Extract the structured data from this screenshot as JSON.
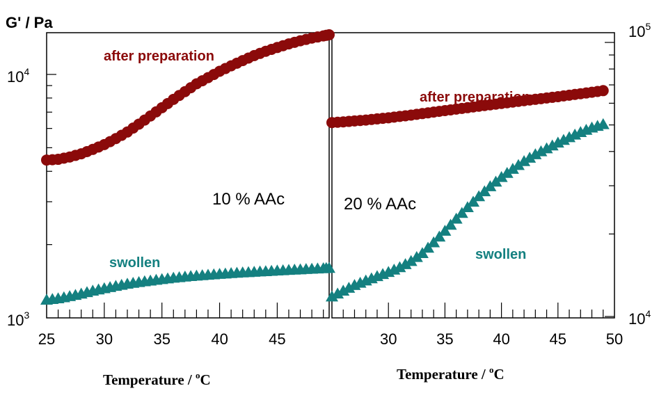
{
  "figure": {
    "y_axis_label": "G'  /  Pa"
  },
  "chart_data": [
    {
      "type": "scatter",
      "panel_label": "10 % AAc",
      "xlabel": "Temperature  / °C",
      "xlabel_parts": {
        "main": "Temperature  / ",
        "sup": "o",
        "unit": "C"
      },
      "ylabel": "G'  /  Pa",
      "y_scale": "log",
      "ylim": [
        1000,
        15000
      ],
      "xlim": [
        25,
        49.5
      ],
      "x_ticks": [
        25,
        30,
        35,
        40,
        45
      ],
      "y_tick_labels": [
        {
          "value": 1000,
          "base": "10",
          "exp": "3"
        },
        {
          "value": 10000,
          "base": "10",
          "exp": "4"
        }
      ],
      "grid": false,
      "series": [
        {
          "name": "after preparation",
          "color": "#8b0a0a",
          "marker": "circle",
          "points": [
            [
              25,
              4450
            ],
            [
              26,
              4480
            ],
            [
              27,
              4580
            ],
            [
              28,
              4720
            ],
            [
              29,
              4920
            ],
            [
              30,
              5150
            ],
            [
              31,
              5450
            ],
            [
              32,
              5800
            ],
            [
              33,
              6250
            ],
            [
              34,
              6750
            ],
            [
              35,
              7300
            ],
            [
              36,
              7900
            ],
            [
              37,
              8500
            ],
            [
              38,
              9150
            ],
            [
              39,
              9700
            ],
            [
              40,
              10300
            ],
            [
              41,
              10850
            ],
            [
              42,
              11400
            ],
            [
              43,
              11950
            ],
            [
              44,
              12450
            ],
            [
              45,
              12900
            ],
            [
              46,
              13350
            ],
            [
              47,
              13750
            ],
            [
              48,
              14100
            ],
            [
              49,
              14400
            ],
            [
              49.5,
              14550
            ]
          ]
        },
        {
          "name": "swollen",
          "color": "#148080",
          "marker": "triangle",
          "points": [
            [
              25,
              1185
            ],
            [
              26,
              1200
            ],
            [
              27,
              1225
            ],
            [
              28,
              1255
            ],
            [
              29,
              1290
            ],
            [
              30,
              1320
            ],
            [
              31,
              1350
            ],
            [
              32,
              1378
            ],
            [
              33,
              1400
            ],
            [
              34,
              1420
            ],
            [
              35,
              1440
            ],
            [
              36,
              1458
            ],
            [
              37,
              1474
            ],
            [
              38,
              1488
            ],
            [
              39,
              1500
            ],
            [
              40,
              1512
            ],
            [
              41,
              1523
            ],
            [
              42,
              1533
            ],
            [
              43,
              1543
            ],
            [
              44,
              1552
            ],
            [
              45,
              1561
            ],
            [
              46,
              1570
            ],
            [
              47,
              1579
            ],
            [
              48,
              1588
            ],
            [
              49,
              1596
            ],
            [
              49.5,
              1600
            ]
          ]
        }
      ]
    },
    {
      "type": "scatter",
      "panel_label": "20 % AAc",
      "xlabel": "Temperature  / °C",
      "xlabel_parts": {
        "main": "Temperature  / ",
        "sup": "o",
        "unit": "C"
      },
      "y_scale": "log",
      "ylim": [
        10000,
        115000
      ],
      "xlim": [
        25,
        50
      ],
      "x_ticks": [
        30,
        35,
        40,
        45,
        50
      ],
      "y_tick_labels": [
        {
          "value": 10000,
          "base": "10",
          "exp": "4"
        },
        {
          "value": 100000,
          "base": "10",
          "exp": "5"
        }
      ],
      "grid": false,
      "series": [
        {
          "name": "after preparation",
          "color": "#8b0a0a",
          "marker": "circle",
          "points": [
            [
              25,
              51000
            ],
            [
              26,
              51300
            ],
            [
              27,
              51700
            ],
            [
              28,
              52100
            ],
            [
              29,
              52600
            ],
            [
              30,
              53100
            ],
            [
              31,
              53700
            ],
            [
              32,
              54300
            ],
            [
              33,
              55000
            ],
            [
              34,
              55700
            ],
            [
              35,
              56400
            ],
            [
              36,
              57100
            ],
            [
              37,
              57800
            ],
            [
              38,
              58500
            ],
            [
              39,
              59200
            ],
            [
              40,
              59900
            ],
            [
              41,
              60600
            ],
            [
              42,
              61300
            ],
            [
              43,
              62000
            ],
            [
              44,
              62700
            ],
            [
              45,
              63400
            ],
            [
              46,
              64200
            ],
            [
              47,
              65000
            ],
            [
              48,
              65800
            ],
            [
              49,
              66700
            ]
          ]
        },
        {
          "name": "swollen",
          "color": "#148080",
          "marker": "triangle",
          "points": [
            [
              25,
              11800
            ],
            [
              26,
              12400
            ],
            [
              27,
              13000
            ],
            [
              28,
              13500
            ],
            [
              29,
              14000
            ],
            [
              30,
              14500
            ],
            [
              31,
              15100
            ],
            [
              32,
              15900
            ],
            [
              33,
              17000
            ],
            [
              34,
              18600
            ],
            [
              35,
              20500
            ],
            [
              36,
              22700
            ],
            [
              37,
              25000
            ],
            [
              38,
              27400
            ],
            [
              39,
              29800
            ],
            [
              40,
              32200
            ],
            [
              41,
              34500
            ],
            [
              42,
              36800
            ],
            [
              43,
              39000
            ],
            [
              44,
              41000
            ],
            [
              45,
              43000
            ],
            [
              46,
              45000
            ],
            [
              47,
              47000
            ],
            [
              48,
              48800
            ],
            [
              49,
              50200
            ]
          ]
        }
      ]
    }
  ]
}
